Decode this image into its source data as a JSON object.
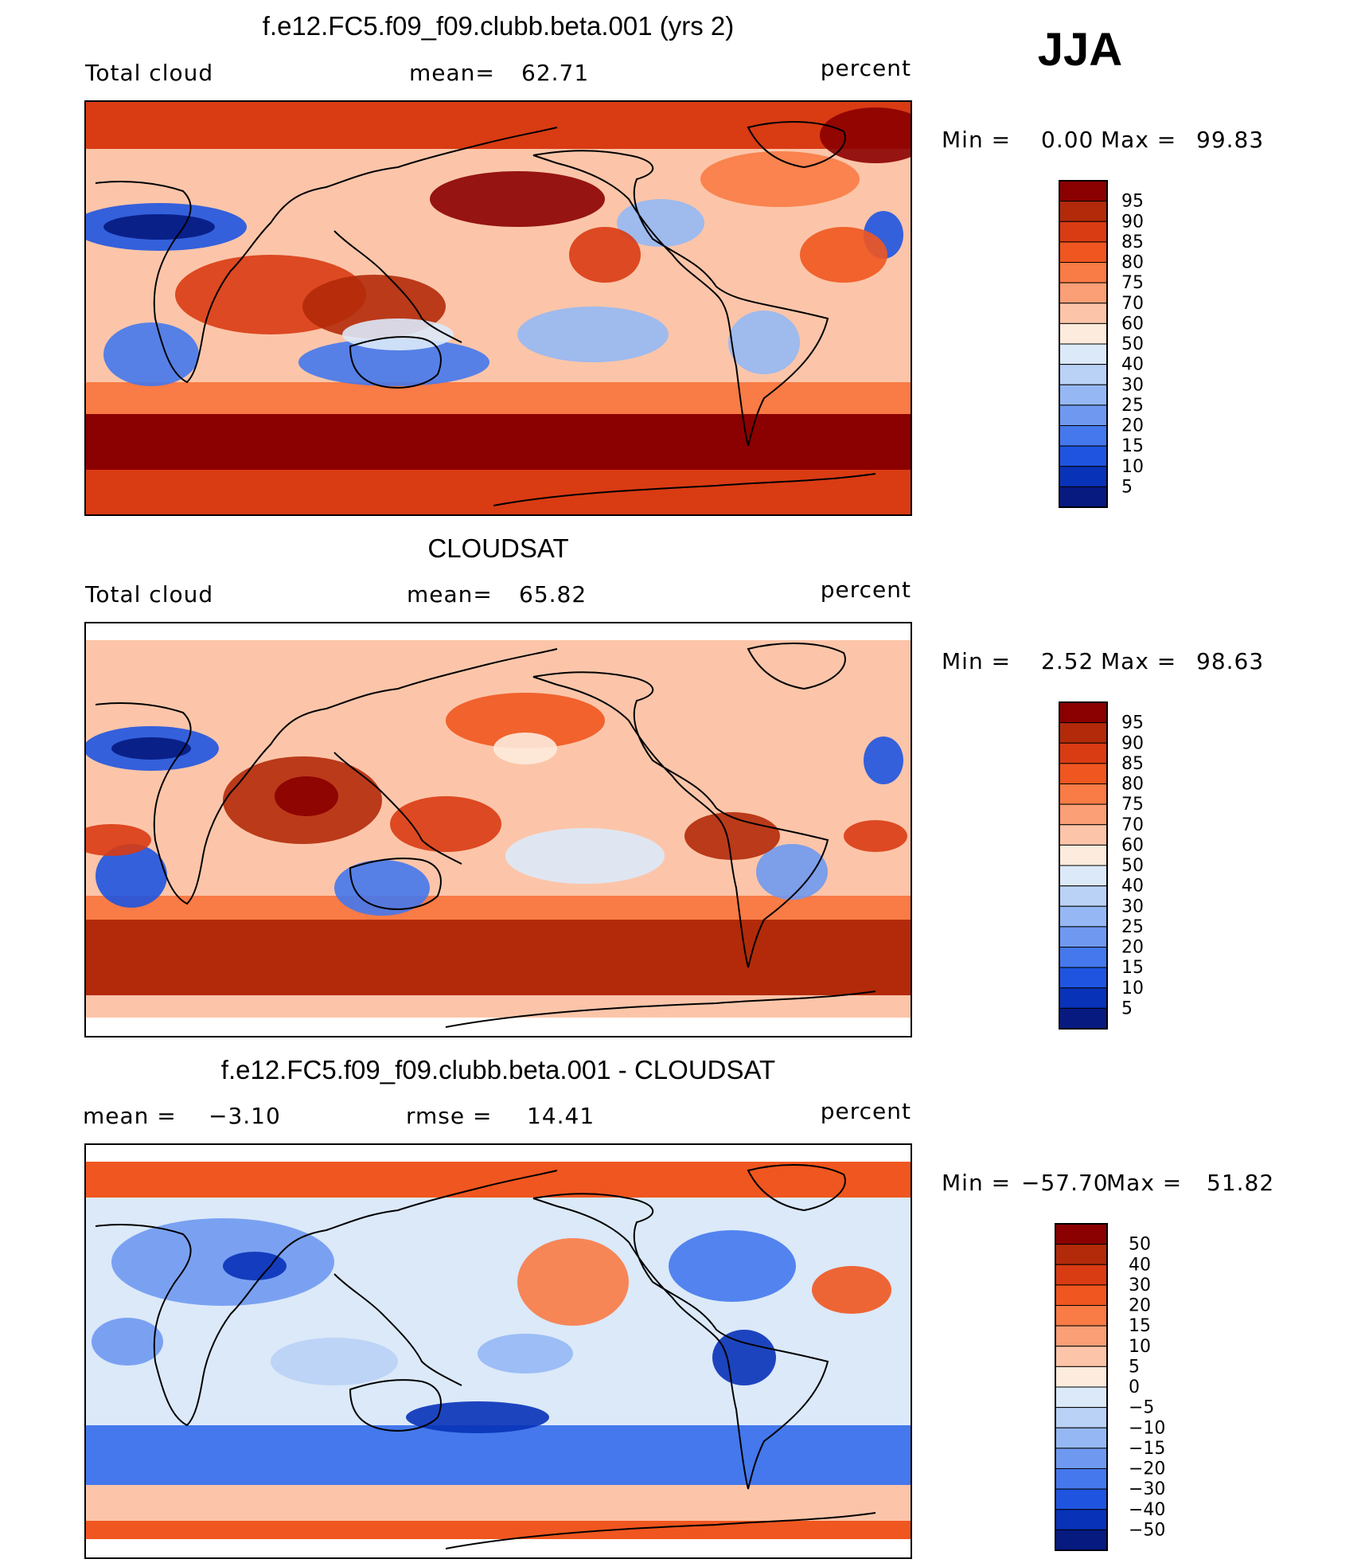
{
  "season": "JJA",
  "chart_data": [
    {
      "type": "heatmap",
      "title": "f.e12.FC5.f09_f09.clubb.beta.001 (yrs 2)",
      "left_label": "Total cloud",
      "mean_label": "mean=",
      "mean_value": "62.71",
      "units": "percent",
      "min_label": "Min =",
      "min_value": "0.00",
      "max_label": "Max =",
      "max_value": "99.83",
      "colorbar": {
        "levels": [
          "95",
          "90",
          "85",
          "80",
          "75",
          "70",
          "60",
          "50",
          "40",
          "30",
          "25",
          "20",
          "15",
          "10",
          "5"
        ],
        "colors": [
          "#8b0000",
          "#b22a0a",
          "#d93b13",
          "#f0561f",
          "#f97b45",
          "#fb9f77",
          "#fcc5a9",
          "#fdebdd",
          "#dbe9f9",
          "#b9d2f6",
          "#95b8f4",
          "#6f99f0",
          "#4478ec",
          "#1e54e0",
          "#0832b8",
          "#061a80"
        ]
      }
    },
    {
      "type": "heatmap",
      "title": "CLOUDSAT",
      "left_label": "Total cloud",
      "mean_label": "mean=",
      "mean_value": "65.82",
      "units": "percent",
      "min_label": "Min =",
      "min_value": "2.52",
      "max_label": "Max =",
      "max_value": "98.63",
      "colorbar": {
        "levels": [
          "95",
          "90",
          "85",
          "80",
          "75",
          "70",
          "60",
          "50",
          "40",
          "30",
          "25",
          "20",
          "15",
          "10",
          "5"
        ],
        "colors": [
          "#8b0000",
          "#b22a0a",
          "#d93b13",
          "#f0561f",
          "#f97b45",
          "#fb9f77",
          "#fcc5a9",
          "#fdebdd",
          "#dbe9f9",
          "#b9d2f6",
          "#95b8f4",
          "#6f99f0",
          "#4478ec",
          "#1e54e0",
          "#0832b8",
          "#061a80"
        ]
      }
    },
    {
      "type": "heatmap",
      "title": "f.e12.FC5.f09_f09.clubb.beta.001 - CLOUDSAT",
      "left_label": "mean =",
      "left_value": "−3.10",
      "mean_label": "rmse =",
      "mean_value": "14.41",
      "units": "percent",
      "min_label": "Min =",
      "min_value": "−57.70",
      "max_label": "Max =",
      "max_value": "51.82",
      "colorbar": {
        "levels": [
          "50",
          "40",
          "30",
          "20",
          "15",
          "10",
          "5",
          "0",
          "−5",
          "−10",
          "−15",
          "−20",
          "−30",
          "−40",
          "−50"
        ],
        "colors": [
          "#8b0000",
          "#b22a0a",
          "#d93b13",
          "#f0561f",
          "#f97b45",
          "#fb9f77",
          "#fcc5a9",
          "#fdebdd",
          "#dbe9f9",
          "#b9d2f6",
          "#95b8f4",
          "#6f99f0",
          "#4478ec",
          "#1e54e0",
          "#0832b8",
          "#061a80"
        ]
      }
    }
  ]
}
